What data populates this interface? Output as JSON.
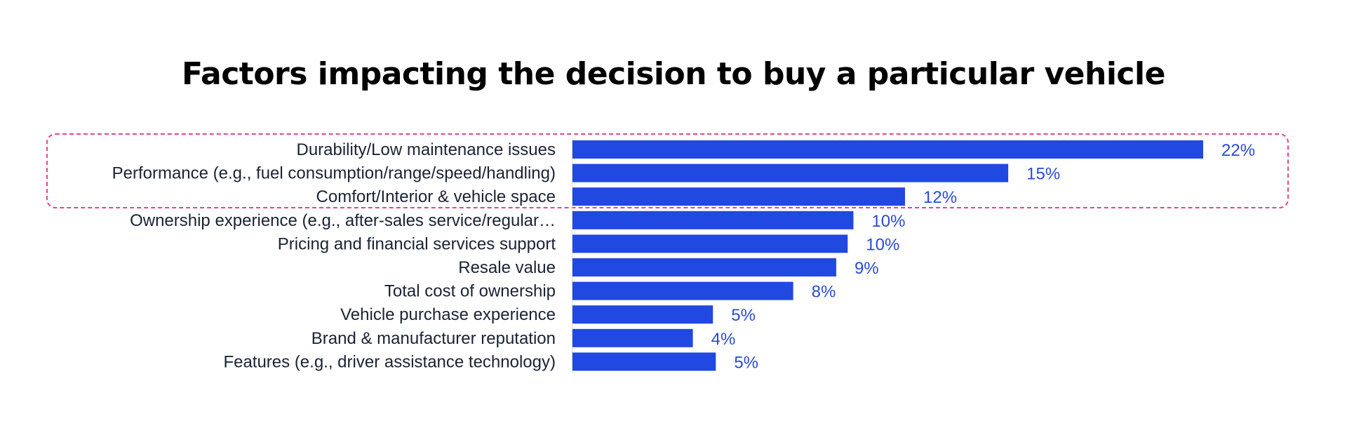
{
  "chart_data": {
    "type": "bar",
    "orientation": "horizontal",
    "title": "Factors impacting the decision to buy a particular vehicle",
    "xlabel": "",
    "ylabel": "",
    "xlim": [
      0,
      22
    ],
    "grid": false,
    "legend": "none",
    "categories": [
      "Durability/Low maintenance issues",
      "Performance (e.g., fuel consumption/range/speed/handling)",
      "Comfort/Interior & vehicle space",
      "Ownership experience (e.g., after-sales service/regular…",
      "Pricing and financial services support",
      "Resale value",
      "Total cost of ownership",
      "Vehicle purchase experience",
      "Brand & manufacturer reputation",
      "Features (e.g., driver assistance technology)"
    ],
    "values": [
      22,
      15.2,
      11.6,
      9.8,
      9.6,
      9.2,
      7.7,
      4.9,
      4.2,
      5.0
    ],
    "data_labels": [
      "22%",
      "15%",
      "12%",
      "10%",
      "10%",
      "9%",
      "8%",
      "5%",
      "4%",
      "5%"
    ],
    "highlighted_categories": [
      0,
      1,
      2
    ],
    "colors": {
      "bar": "#2148e0",
      "data_label": "#2a4bd0",
      "category_label": "#1a2233",
      "highlight_border": "#e2468f"
    }
  }
}
